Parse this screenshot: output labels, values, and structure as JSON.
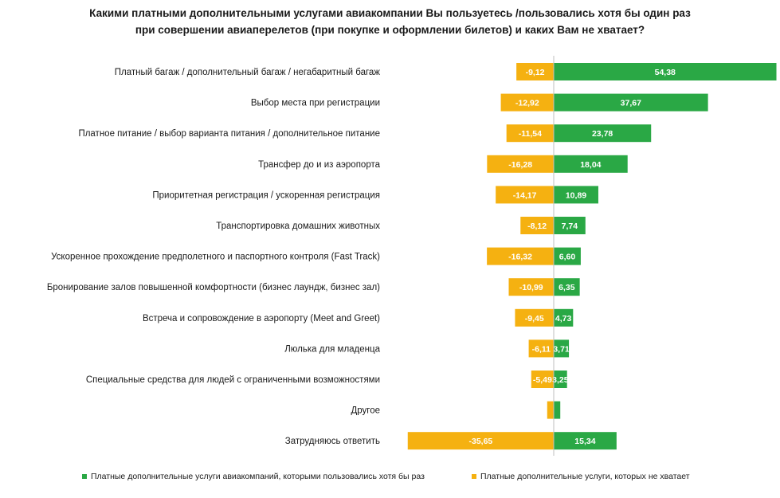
{
  "title_lines": [
    "Какими платными дополнительными услугами авиакомпании Вы пользуетесь /пользовались хотя бы один раз",
    "при совершении авиаперелетов (при покупке и оформлении билетов) и каких Вам не хватает?"
  ],
  "colors": {
    "used": "#2aa845",
    "missing": "#f5b111",
    "axis": "#bfbfbf"
  },
  "legend": {
    "used_label": "Платные дополнительные услуги авиакомпаний, которыми пользовались хотя бы раз",
    "missing_label": "Платные дополнительные услуги, которых не хватает"
  },
  "chart_data": {
    "type": "bar",
    "orientation": "horizontal",
    "diverging": true,
    "title": "Какими платными дополнительными услугами авиакомпании Вы пользуетесь /пользовались хотя бы один раз при совершении авиаперелетов (при покупке и оформлении билетов) и каких Вам не хватает?",
    "legend_position": "bottom",
    "grid": false,
    "categories": [
      "Платный багаж / дополнительный багаж / негабаритный багаж",
      "Выбор места при регистрации",
      "Платное питание / выбор варианта питания / дополнительное питание",
      "Трансфер до и из аэропорта",
      "Приоритетная регистрация / ускоренная регистрация",
      "Транспортировка домашних животных",
      "Ускоренное прохождение предполетного и паспортного контроля (Fast Track)",
      "Бронирование залов повышенной комфортности (бизнес лаундж, бизнес зал)",
      "Встреча и сопровождение в аэропорту (Meet and Greet)",
      "Люлька для младенца",
      "Специальные средства для людей с ограниченными возможностями",
      "Другое",
      "Затрудняюсь ответить"
    ],
    "series": [
      {
        "name": "Платные дополнительные услуги авиакомпаний, которыми пользовались хотя бы раз",
        "values": [
          54.38,
          37.67,
          23.78,
          18.04,
          10.89,
          7.74,
          6.6,
          6.35,
          4.73,
          3.71,
          3.25,
          1.6,
          15.34
        ],
        "labels": [
          "54,38",
          "37,67",
          "23,78",
          "18,04",
          "10,89",
          "7,74",
          "6,60",
          "6,35",
          "4,73",
          "3,71",
          "3,25",
          "",
          "15,34"
        ]
      },
      {
        "name": "Платные дополнительные услуги, которых не хватает",
        "values": [
          -9.12,
          -12.92,
          -11.54,
          -16.28,
          -14.17,
          -8.12,
          -16.32,
          -10.99,
          -9.45,
          -6.11,
          -5.49,
          -1.6,
          -35.65
        ],
        "labels": [
          "-9,12",
          "-12,92",
          "-11,54",
          "-16,28",
          "-14,17",
          "-8,12",
          "-16,32",
          "-10,99",
          "-9,45",
          "-6,11",
          "-5,49",
          "",
          "-35,65"
        ]
      }
    ]
  }
}
